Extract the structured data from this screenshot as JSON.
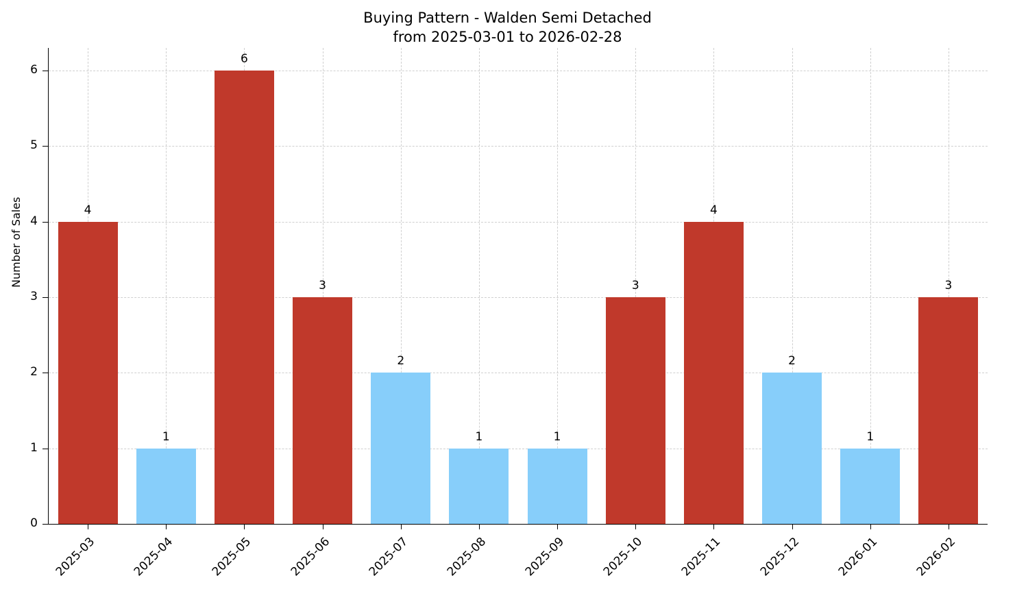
{
  "title": {
    "line1": "Buying Pattern - Walden Semi Detached",
    "line2": "from 2025-03-01 to 2026-02-28"
  },
  "chart_data": {
    "type": "bar",
    "title": "Buying Pattern - Walden Semi Detached from 2025-03-01 to 2026-02-28",
    "xlabel": "",
    "ylabel": "Number of Sales",
    "categories": [
      "2025-03",
      "2025-04",
      "2025-05",
      "2025-06",
      "2025-07",
      "2025-08",
      "2025-09",
      "2025-10",
      "2025-11",
      "2025-12",
      "2026-01",
      "2026-02"
    ],
    "values": [
      4,
      1,
      6,
      3,
      2,
      1,
      1,
      3,
      4,
      2,
      1,
      3
    ],
    "bar_colors": [
      "#c0392b",
      "#87CEFA",
      "#c0392b",
      "#c0392b",
      "#87CEFA",
      "#87CEFA",
      "#87CEFA",
      "#c0392b",
      "#c0392b",
      "#87CEFA",
      "#87CEFA",
      "#c0392b"
    ],
    "value_labels": [
      "4",
      "1",
      "6",
      "3",
      "2",
      "1",
      "1",
      "3",
      "4",
      "2",
      "1",
      "3"
    ],
    "yticks": [
      0,
      1,
      2,
      3,
      4,
      5,
      6
    ],
    "ylim": [
      0,
      6.3
    ],
    "grid": "dashed",
    "legend": "none"
  },
  "colors": {
    "red": "#c0392b",
    "blue": "#87CEFA",
    "grid": "#cfcfcf",
    "axis": "#000000",
    "background": "#ffffff"
  }
}
